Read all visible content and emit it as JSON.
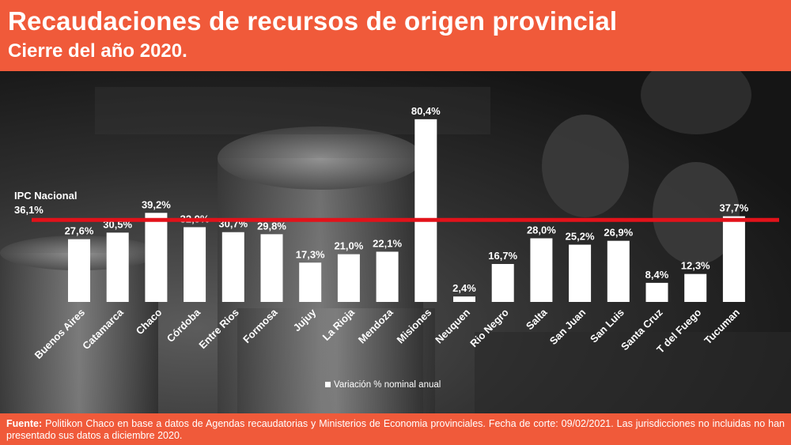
{
  "header": {
    "title": "Recaudaciones de recursos de origen provincial",
    "subtitle": "Cierre del año 2020."
  },
  "chart_data": {
    "type": "bar",
    "categories": [
      "Buenos Aires",
      "Catamarca",
      "Chaco",
      "Córdoba",
      "Entre Rios",
      "Formosa",
      "Jujuy",
      "La Rioja",
      "Mendoza",
      "Misiones",
      "Neuquen",
      "Rio Negro",
      "Salta",
      "San Juan",
      "San Luis",
      "Santa Cruz",
      "T del Fuego",
      "Tucuman"
    ],
    "series": [
      {
        "name": "Variación % nominal anual",
        "values": [
          27.6,
          30.5,
          39.2,
          32.9,
          30.7,
          29.8,
          17.3,
          21.0,
          22.1,
          80.4,
          2.4,
          16.7,
          28.0,
          25.2,
          26.9,
          8.4,
          12.3,
          37.7
        ],
        "labels": [
          "27,6%",
          "30,5%",
          "39,2%",
          "32,9%",
          "30,7%",
          "29,8%",
          "17,3%",
          "21,0%",
          "22,1%",
          "80,4%",
          "2,4%",
          "16,7%",
          "28,0%",
          "25,2%",
          "26,9%",
          "8,4%",
          "12,3%",
          "37,7%"
        ]
      }
    ],
    "reference_line": {
      "label": "IPC Nacional",
      "value": 36.1,
      "value_label": "36,1%",
      "color": "#e3121a"
    },
    "ylim": [
      0,
      82
    ],
    "grid": false,
    "legend_position": "bottom-center",
    "bar_color": "#ffffff"
  },
  "footer": {
    "source_label": "Fuente:",
    "source_text": " Politikon Chaco en base a datos de Agendas recaudatorias y Ministerios de Economia provinciales. Fecha de corte: 09/02/2021. Las jurisdicciones no incluidas no han presentado sus datos a diciembre 2020."
  },
  "colors": {
    "accent": "#f05a3a",
    "background": "#1b1b1b"
  }
}
